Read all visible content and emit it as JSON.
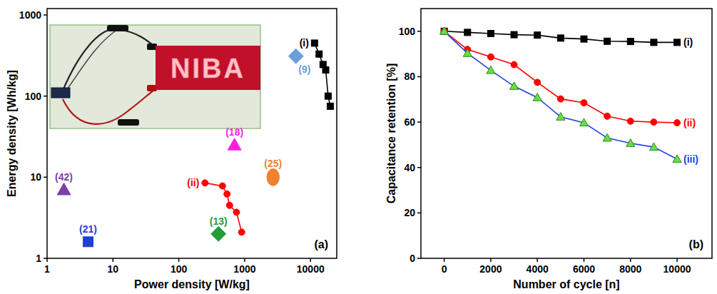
{
  "chart_data": [
    {
      "type": "line",
      "panel_label": "(a)",
      "x_label": "Power density [W/kg]",
      "y_label": "Energy density [Wh/kg]",
      "log": true,
      "xlim": [
        1,
        25000
      ],
      "ylim": [
        1,
        1200
      ],
      "xticks": [
        1,
        10,
        100,
        1000,
        10000
      ],
      "yticks": [
        1,
        10,
        100,
        1000
      ],
      "inset_text": "NIBA",
      "series": [
        {
          "name": "(i)",
          "type": "line",
          "color": "#000000",
          "marker": "square",
          "line_style": "solid",
          "x": [
            11500,
            13500,
            15500,
            17000,
            18500,
            20000
          ],
          "values": [
            450,
            330,
            245,
            210,
            100,
            75
          ]
        },
        {
          "name": "(ii)",
          "type": "line",
          "color": "#ff0000",
          "marker": "circle",
          "line_style": "solid",
          "x": [
            250,
            460,
            540,
            590,
            750,
            900
          ],
          "values": [
            8.5,
            7.8,
            6.2,
            4.5,
            3.7,
            2.1
          ]
        },
        {
          "name": "(9)",
          "type": "scatter",
          "color": "#6a9fd8",
          "marker": "diamond",
          "x": [
            6000
          ],
          "values": [
            310
          ]
        },
        {
          "name": "(18)",
          "type": "scatter",
          "color": "#ff1fe0",
          "marker": "triangle",
          "x": [
            700
          ],
          "values": [
            25
          ]
        },
        {
          "name": "(42)",
          "type": "scatter",
          "color": "#7b3fa8",
          "marker": "triangle",
          "x": [
            1.8
          ],
          "values": [
            7
          ]
        },
        {
          "name": "(21)",
          "type": "scatter",
          "color": "#1f3fd6",
          "marker": "square",
          "x": [
            4.2
          ],
          "values": [
            1.6
          ]
        },
        {
          "name": "(13)",
          "type": "scatter",
          "color": "#1f9e3a",
          "marker": "diamond",
          "x": [
            400
          ],
          "values": [
            2
          ]
        },
        {
          "name": "(25)",
          "type": "scatter",
          "color": "#f0812e",
          "marker": "ellipse",
          "x": [
            2700
          ],
          "values": [
            10
          ]
        }
      ]
    },
    {
      "type": "line",
      "panel_label": "(b)",
      "x_label": "Number of cycle [n]",
      "y_label": "Capacitance retention [%]",
      "xlim": [
        -1000,
        11500
      ],
      "ylim": [
        0,
        110
      ],
      "xticks": [
        0,
        2000,
        4000,
        6000,
        8000,
        10000
      ],
      "yticks": [
        0,
        20,
        40,
        60,
        80,
        100
      ],
      "x": [
        0,
        1000,
        2000,
        3000,
        4000,
        5000,
        6000,
        7000,
        8000,
        9000,
        10000
      ],
      "series": [
        {
          "name": "(i)",
          "color": "#000000",
          "marker": "square",
          "line_style": "solid",
          "values": [
            100,
            99.5,
            99,
            98.5,
            98.3,
            97,
            96.6,
            95.6,
            95.5,
            95.1,
            95.1
          ]
        },
        {
          "name": "(ii)",
          "color": "#ff0000",
          "marker": "circle",
          "line_style": "solid",
          "values": [
            100,
            92,
            88.7,
            85.3,
            77.5,
            70.2,
            68.5,
            62.6,
            60.4,
            60,
            59.7
          ]
        },
        {
          "name": "(iii)",
          "color": "#2040e0",
          "marker": "triangle",
          "line_style": "solid",
          "colors": [
            "#66dd44",
            "#66dd44",
            "#66dd44",
            "#66dd44",
            "#66dd44",
            "#66dd44",
            "#66dd44",
            "#66dd44",
            "#66dd44",
            "#66dd44",
            "#66dd44"
          ],
          "values": [
            100,
            90.3,
            82.8,
            75.8,
            70.8,
            62.3,
            59.7,
            53,
            50.7,
            49,
            43.7
          ]
        }
      ]
    }
  ]
}
